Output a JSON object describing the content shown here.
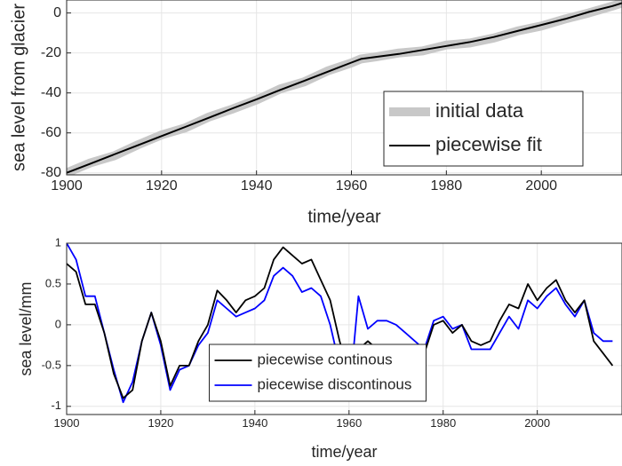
{
  "chart_data": [
    {
      "type": "line",
      "ylabel": "sea level from glacier",
      "xlabel": "time/year",
      "x": [
        1900,
        1905,
        1910,
        1915,
        1920,
        1925,
        1930,
        1935,
        1940,
        1945,
        1950,
        1955,
        1960,
        1962,
        1965,
        1970,
        1975,
        1980,
        1985,
        1990,
        1995,
        2000,
        2005,
        2010,
        2015,
        2017
      ],
      "series": [
        {
          "name": "initial data",
          "color": "#c8c8c8",
          "values": [
            -80,
            -75,
            -71.5,
            -66,
            -61,
            -57.5,
            -52,
            -48,
            -43.5,
            -38,
            -34.5,
            -29,
            -25,
            -23,
            -22,
            -20,
            -19,
            -16,
            -15,
            -12.5,
            -9,
            -6.5,
            -3,
            0,
            3.5,
            5
          ]
        },
        {
          "name": "piecewise fit",
          "color": "#000000",
          "values": [
            -80,
            -75.4,
            -70.8,
            -66.2,
            -61.6,
            -57,
            -52.4,
            -47.7,
            -43.2,
            -38.5,
            -34,
            -29.4,
            -24.8,
            -23,
            -22,
            -20.5,
            -18.5,
            -16.5,
            -14.5,
            -12,
            -9,
            -6,
            -3,
            0.5,
            3.5,
            5
          ]
        }
      ],
      "xlim": [
        1900,
        2017
      ],
      "ylim": [
        -81,
        6.5
      ],
      "xticks": [
        1900,
        1920,
        1940,
        1960,
        1980,
        2000
      ],
      "yticks": [
        -80,
        -60,
        -40,
        -20,
        0
      ],
      "grid": true,
      "legend": "lower right"
    },
    {
      "type": "line",
      "ylabel": "sea level/mm",
      "xlabel": "time/year",
      "x": [
        1900,
        1902,
        1904,
        1906,
        1908,
        1910,
        1912,
        1914,
        1916,
        1918,
        1920,
        1922,
        1924,
        1926,
        1928,
        1930,
        1932,
        1934,
        1936,
        1938,
        1940,
        1942,
        1944,
        1946,
        1948,
        1950,
        1952,
        1954,
        1956,
        1958,
        1960,
        1962,
        1964,
        1966,
        1968,
        1970,
        1972,
        1974,
        1976,
        1978,
        1980,
        1982,
        1984,
        1986,
        1988,
        1990,
        1992,
        1994,
        1996,
        1998,
        2000,
        2002,
        2004,
        2006,
        2008,
        2010,
        2012,
        2014,
        2016
      ],
      "series": [
        {
          "name": "piecewise discontinous",
          "color": "#0000ff",
          "values": [
            1.0,
            0.8,
            0.35,
            0.35,
            -0.1,
            -0.55,
            -0.95,
            -0.7,
            -0.2,
            0.15,
            -0.25,
            -0.8,
            -0.55,
            -0.5,
            -0.25,
            -0.1,
            0.3,
            0.2,
            0.1,
            0.15,
            0.2,
            0.3,
            0.6,
            0.7,
            0.6,
            0.4,
            0.45,
            0.35,
            0.0,
            -0.5,
            -0.9,
            0.35,
            -0.05,
            0.05,
            0.05,
            0.0,
            -0.1,
            -0.2,
            -0.3,
            0.05,
            0.1,
            -0.05,
            0.0,
            -0.3,
            -0.3,
            -0.3,
            -0.1,
            0.1,
            -0.05,
            0.3,
            0.2,
            0.35,
            0.45,
            0.25,
            0.1,
            0.3,
            -0.1,
            -0.2,
            -0.2
          ]
        },
        {
          "name": "piecewise continous",
          "color": "#000000",
          "values": [
            0.75,
            0.65,
            0.25,
            0.25,
            -0.1,
            -0.6,
            -0.9,
            -0.8,
            -0.2,
            0.15,
            -0.2,
            -0.75,
            -0.5,
            -0.5,
            -0.2,
            0.0,
            0.42,
            0.3,
            0.15,
            0.3,
            0.35,
            0.45,
            0.8,
            0.95,
            0.85,
            0.75,
            0.8,
            0.55,
            0.3,
            -0.2,
            -0.6,
            -0.3,
            -0.2,
            -0.3,
            -0.25,
            -0.3,
            -0.4,
            -0.5,
            -0.35,
            0.0,
            0.05,
            -0.1,
            0.0,
            -0.2,
            -0.25,
            -0.2,
            0.05,
            0.25,
            0.2,
            0.5,
            0.3,
            0.45,
            0.55,
            0.3,
            0.15,
            0.3,
            -0.2,
            -0.35,
            -0.5
          ]
        }
      ],
      "xlim": [
        1900,
        2018
      ],
      "ylim": [
        -1.1,
        1.0
      ],
      "xticks": [
        1900,
        1920,
        1940,
        1960,
        1980,
        2000
      ],
      "yticks": [
        -1,
        -0.5,
        0,
        0.5,
        1
      ],
      "grid": true,
      "legend": "lower center"
    }
  ]
}
